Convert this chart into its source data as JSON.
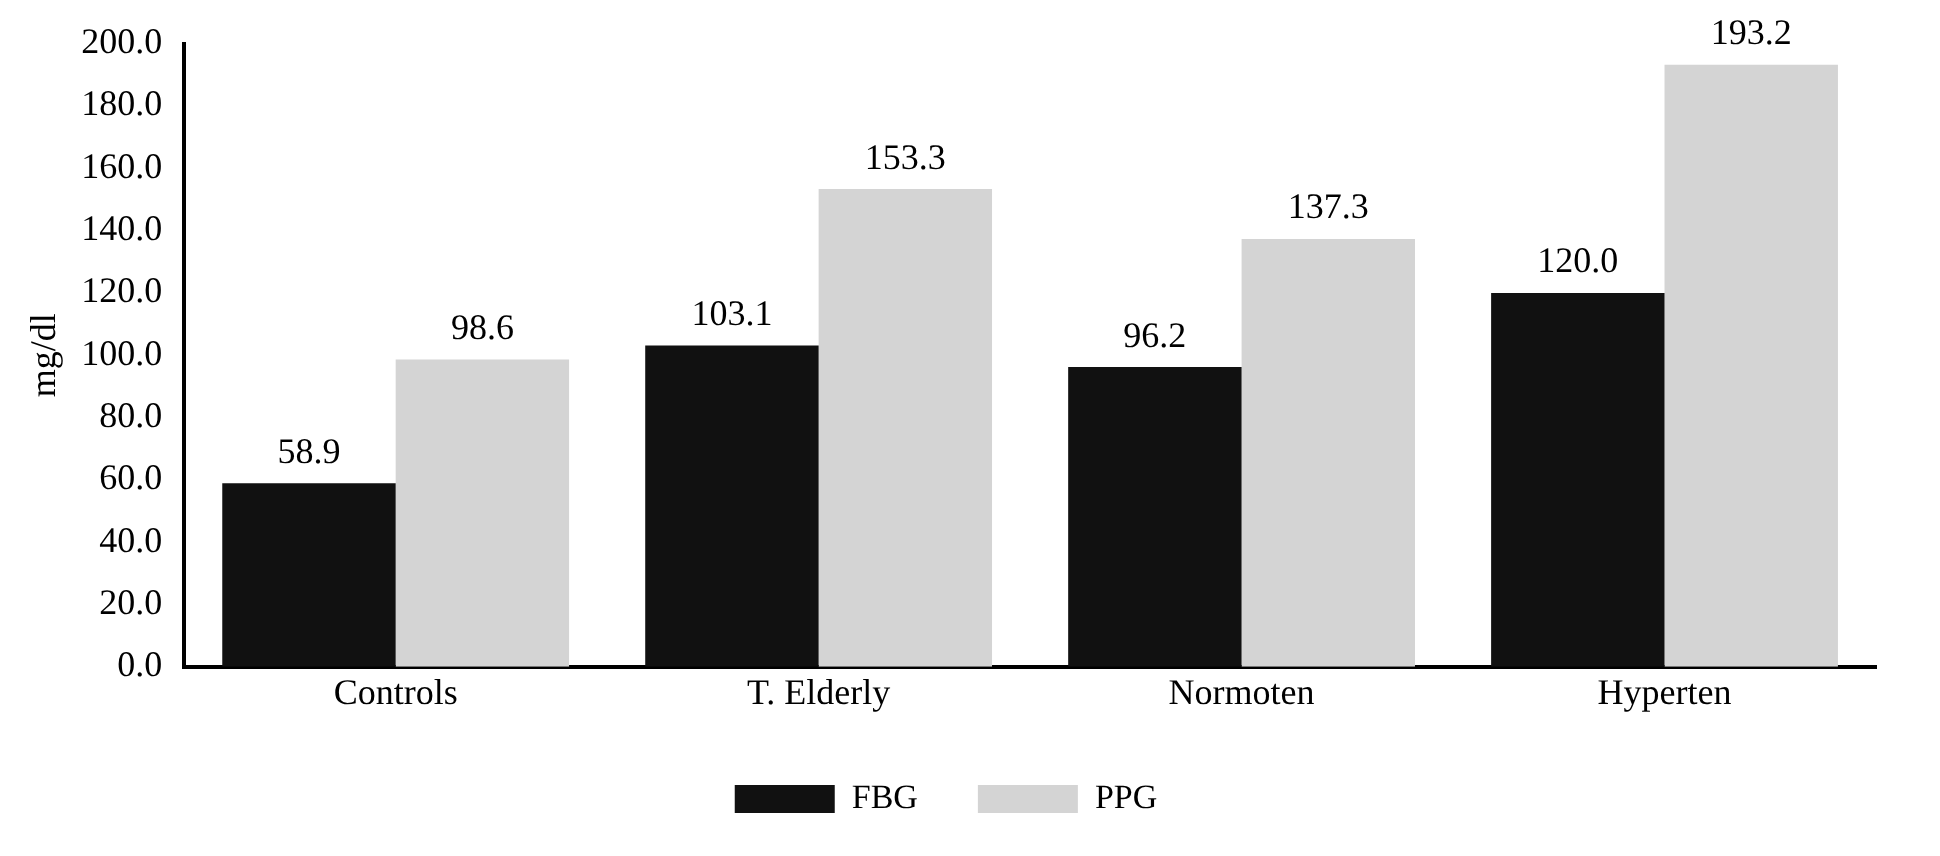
{
  "chart_data": {
    "type": "bar",
    "ylabel": "mg/dl",
    "categories": [
      "Controls",
      "T. Elderly",
      "Normoten",
      "Hyperten"
    ],
    "series": [
      {
        "name": "FBG",
        "color": "#111111",
        "values": [
          58.9,
          103.1,
          96.2,
          120.0
        ],
        "value_labels": [
          "58.9",
          "103.1",
          "96.2",
          "120.0"
        ]
      },
      {
        "name": "PPG",
        "color": "#d4d4d4",
        "values": [
          98.6,
          153.3,
          137.3,
          193.2
        ],
        "value_labels": [
          "98.6",
          "153.3",
          "137.3",
          "193.2"
        ]
      }
    ],
    "ylim": [
      0,
      200
    ],
    "yticks": [
      {
        "value": 0,
        "label": "0.0"
      },
      {
        "value": 20,
        "label": "20.0"
      },
      {
        "value": 40,
        "label": "40.0"
      },
      {
        "value": 60,
        "label": "60.0"
      },
      {
        "value": 80,
        "label": "80.0"
      },
      {
        "value": 100,
        "label": "100.0"
      },
      {
        "value": 120,
        "label": "120.0"
      },
      {
        "value": 140,
        "label": "140.0"
      },
      {
        "value": 160,
        "label": "160.0"
      },
      {
        "value": 180,
        "label": "180.0"
      },
      {
        "value": 200,
        "label": "200.0"
      }
    ],
    "grid": false,
    "legend": "bottom"
  }
}
